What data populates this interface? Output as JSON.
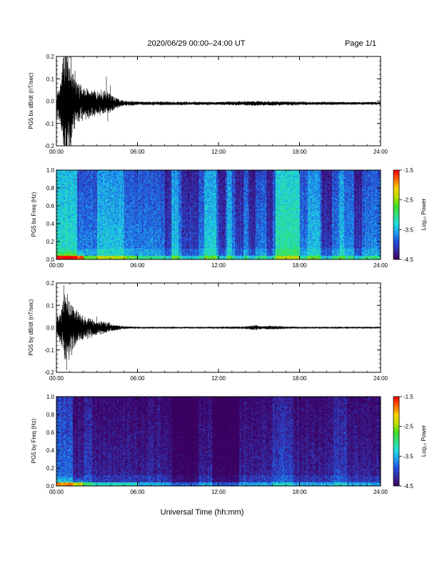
{
  "header": {
    "title": "2020/06/29  00:00–24:00 UT",
    "page": "Page 1/1"
  },
  "xlabel": "Universal Time (hh:mm)",
  "colors": {
    "trace": "#000000",
    "colorbar_stops": [
      "#3a0060",
      "#3a2aa0",
      "#1f4fe0",
      "#1e9ff0",
      "#20e0e0",
      "#30e080",
      "#40e020",
      "#c0e000",
      "#ffd000",
      "#ff6000",
      "#ff0000"
    ]
  },
  "chart_data": [
    {
      "type": "line",
      "ylabel": "PG5 bx dB/dt (nT/sec)",
      "x_unit": "hours UT",
      "xlim": [
        0,
        24
      ],
      "ylim": [
        -0.2,
        0.2
      ],
      "x_ticks": [
        "00:00",
        "06:00",
        "12:00",
        "18:00",
        "24:00"
      ],
      "y_ticks": [
        "-0.2",
        "-0.1",
        "0.0",
        "0.1",
        "0.2"
      ],
      "baseline": -0.01,
      "envelope": [
        {
          "x": 0.0,
          "amp": 0.05
        },
        {
          "x": 0.3,
          "amp": 0.09
        },
        {
          "x": 0.6,
          "amp": 0.24
        },
        {
          "x": 0.9,
          "amp": 0.22
        },
        {
          "x": 1.2,
          "amp": 0.14
        },
        {
          "x": 1.6,
          "amp": 0.09
        },
        {
          "x": 2.0,
          "amp": 0.07
        },
        {
          "x": 2.5,
          "amp": 0.06
        },
        {
          "x": 3.0,
          "amp": 0.05
        },
        {
          "x": 3.5,
          "amp": 0.05
        },
        {
          "x": 4.0,
          "amp": 0.04
        },
        {
          "x": 4.5,
          "amp": 0.02
        },
        {
          "x": 5.0,
          "amp": 0.012
        },
        {
          "x": 6.0,
          "amp": 0.008
        },
        {
          "x": 12.0,
          "amp": 0.007
        },
        {
          "x": 14.5,
          "amp": 0.01
        },
        {
          "x": 16.0,
          "amp": 0.009
        },
        {
          "x": 19.0,
          "amp": 0.007
        },
        {
          "x": 24.0,
          "amp": 0.006
        }
      ],
      "spikes": [
        {
          "x": 0.55,
          "y": 0.22
        },
        {
          "x": 0.7,
          "y": -0.21
        },
        {
          "x": 0.85,
          "y": 0.21
        },
        {
          "x": 1.2,
          "y": 0.12
        },
        {
          "x": 1.3,
          "y": -0.1
        },
        {
          "x": 3.7,
          "y": 0.11
        },
        {
          "x": 3.8,
          "y": -0.09
        },
        {
          "x": 4.0,
          "y": 0.07
        }
      ]
    },
    {
      "type": "heatmap",
      "ylabel": "PG5 bx Freq (Hz)",
      "colorbar_label": "Log₁₀ Power",
      "xlim": [
        0,
        24
      ],
      "ylim": [
        0.0,
        1.0
      ],
      "x_ticks": [
        "00:00",
        "06:00",
        "12:00",
        "18:00",
        "24:00"
      ],
      "y_ticks": [
        "0.0",
        "0.2",
        "0.4",
        "0.6",
        "0.8",
        "1.0"
      ],
      "color_range": [
        -4.5,
        -1.5
      ],
      "colorbar_ticks": [
        "-1.5",
        "-2.5",
        "-3.5",
        "-4.5"
      ],
      "background_level": -3.7,
      "bright_bands": [
        {
          "from": 0.0,
          "to": 1.5,
          "level": -3.2
        },
        {
          "from": 3.0,
          "to": 5.0,
          "level": -3.4
        },
        {
          "from": 8.5,
          "to": 9.0,
          "level": -3.4
        },
        {
          "from": 10.9,
          "to": 11.8,
          "level": -3.3
        },
        {
          "from": 12.6,
          "to": 13.0,
          "level": -3.4
        },
        {
          "from": 16.2,
          "to": 18.0,
          "level": -3.1
        },
        {
          "from": 18.6,
          "to": 19.5,
          "level": -3.4
        },
        {
          "from": 20.9,
          "to": 21.3,
          "level": -3.4
        }
      ],
      "dark_bands": [
        {
          "from": 8.0,
          "to": 8.5
        },
        {
          "from": 9.2,
          "to": 10.5
        },
        {
          "from": 12.0,
          "to": 12.5
        },
        {
          "from": 13.2,
          "to": 13.8
        },
        {
          "from": 14.2,
          "to": 14.7
        },
        {
          "from": 15.5,
          "to": 16.0
        },
        {
          "from": 19.6,
          "to": 20.4
        },
        {
          "from": 22.0,
          "to": 22.6
        }
      ]
    },
    {
      "type": "line",
      "ylabel": "PG5 by dB/dt (nT/sec)",
      "x_unit": "hours UT",
      "xlim": [
        0,
        24
      ],
      "ylim": [
        -0.2,
        0.2
      ],
      "x_ticks": [
        "00:00",
        "06:00",
        "12:00",
        "18:00",
        "24:00"
      ],
      "y_ticks": [
        "-0.2",
        "-0.1",
        "0.0",
        "0.1",
        "0.2"
      ],
      "baseline": 0.0,
      "envelope": [
        {
          "x": 0.0,
          "amp": 0.04
        },
        {
          "x": 0.3,
          "amp": 0.07
        },
        {
          "x": 0.6,
          "amp": 0.15
        },
        {
          "x": 0.9,
          "amp": 0.13
        },
        {
          "x": 1.3,
          "amp": 0.08
        },
        {
          "x": 2.0,
          "amp": 0.05
        },
        {
          "x": 2.5,
          "amp": 0.04
        },
        {
          "x": 3.0,
          "amp": 0.03
        },
        {
          "x": 3.6,
          "amp": 0.025
        },
        {
          "x": 4.2,
          "amp": 0.015
        },
        {
          "x": 5.0,
          "amp": 0.006
        },
        {
          "x": 6.0,
          "amp": 0.004
        },
        {
          "x": 12.0,
          "amp": 0.004
        },
        {
          "x": 14.0,
          "amp": 0.006
        },
        {
          "x": 14.7,
          "amp": 0.012
        },
        {
          "x": 15.2,
          "amp": 0.006
        },
        {
          "x": 15.8,
          "amp": 0.008
        },
        {
          "x": 18.0,
          "amp": 0.004
        },
        {
          "x": 24.0,
          "amp": 0.004
        }
      ],
      "spikes": [
        {
          "x": 0.55,
          "y": 0.19
        },
        {
          "x": 0.75,
          "y": -0.19
        },
        {
          "x": 0.9,
          "y": 0.12
        },
        {
          "x": 1.5,
          "y": 0.08
        },
        {
          "x": 2.3,
          "y": -0.05
        },
        {
          "x": 3.0,
          "y": 0.05
        }
      ]
    },
    {
      "type": "heatmap",
      "ylabel": "PG5 by Freq (Hz)",
      "colorbar_label": "Log₁₀ Power",
      "xlim": [
        0,
        24
      ],
      "ylim": [
        0.0,
        1.0
      ],
      "x_ticks": [
        "00:00",
        "06:00",
        "12:00",
        "18:00",
        "24:00"
      ],
      "y_ticks": [
        "0.0",
        "0.2",
        "0.4",
        "0.6",
        "0.8",
        "1.0"
      ],
      "color_range": [
        -4.5,
        -1.5
      ],
      "colorbar_ticks": [
        "-1.5",
        "-2.5",
        "-3.5",
        "-4.5"
      ],
      "background_level": -4.25,
      "bright_bands": [
        {
          "from": 0.0,
          "to": 1.2,
          "level": -3.8
        },
        {
          "from": 2.0,
          "to": 2.6,
          "level": -4.0
        },
        {
          "from": 16.0,
          "to": 17.5,
          "level": -4.0
        },
        {
          "from": 20.5,
          "to": 21.5,
          "level": -4.0
        }
      ],
      "dark_bands": [
        {
          "from": 8.5,
          "to": 10.5
        },
        {
          "from": 11.5,
          "to": 13.5
        }
      ]
    }
  ]
}
